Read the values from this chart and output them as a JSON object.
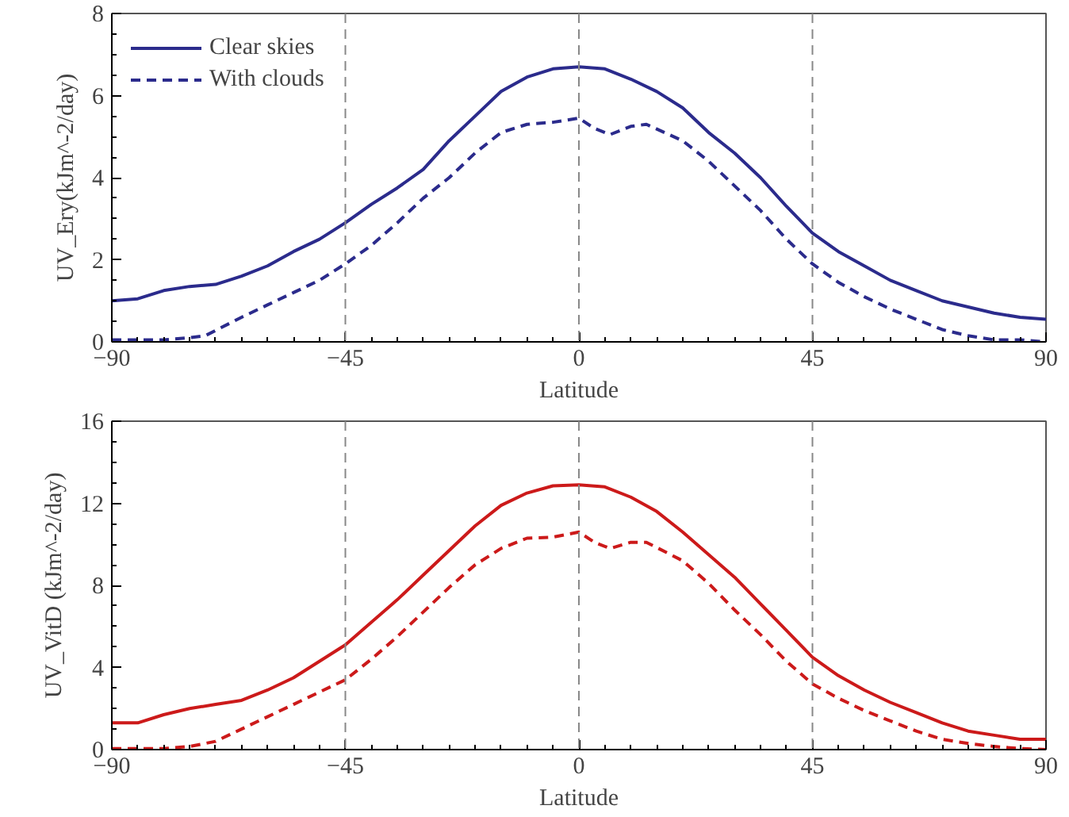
{
  "chart_data": [
    {
      "type": "line",
      "xlabel": "Latitude",
      "ylabel": "UV_Ery(kJm^-2/day)",
      "xlim": [
        -90,
        90
      ],
      "xticks": [
        -90,
        -45,
        0,
        45,
        90
      ],
      "ylim": [
        0,
        8
      ],
      "yticks": [
        0,
        2,
        4,
        6,
        8
      ],
      "grid": false,
      "legend": "top left",
      "ref_lines": [
        {
          "axis": "x",
          "value": -45,
          "line_style": "dashed",
          "color": "#888888"
        },
        {
          "axis": "x",
          "value": 0,
          "line_style": "dashed",
          "color": "#888888"
        },
        {
          "axis": "x",
          "value": 45,
          "line_style": "dashed",
          "color": "#888888"
        }
      ],
      "series": [
        {
          "name": "Clear skies",
          "color": "#2b2b8c",
          "line_style": "solid",
          "x": [
            -90,
            -85,
            -80,
            -75,
            -70,
            -65,
            -60,
            -55,
            -50,
            -45,
            -40,
            -35,
            -30,
            -25,
            -20,
            -15,
            -10,
            -5,
            0,
            5,
            10,
            15,
            20,
            25,
            30,
            35,
            40,
            45,
            50,
            55,
            60,
            65,
            70,
            75,
            80,
            85,
            90
          ],
          "values": [
            1.0,
            1.05,
            1.25,
            1.35,
            1.4,
            1.6,
            1.85,
            2.2,
            2.5,
            2.9,
            3.35,
            3.75,
            4.2,
            4.9,
            5.5,
            6.1,
            6.45,
            6.65,
            6.7,
            6.65,
            6.4,
            6.1,
            5.7,
            5.1,
            4.6,
            4.0,
            3.3,
            2.65,
            2.2,
            1.85,
            1.5,
            1.25,
            1.0,
            0.85,
            0.7,
            0.6,
            0.55
          ]
        },
        {
          "name": "With clouds",
          "color": "#2b2b8c",
          "line_style": "dashed",
          "x": [
            -90,
            -80,
            -75,
            -72,
            -65,
            -60,
            -55,
            -50,
            -45,
            -40,
            -35,
            -30,
            -25,
            -20,
            -15,
            -10,
            -5,
            0,
            3,
            6,
            10,
            13,
            20,
            25,
            30,
            35,
            40,
            45,
            50,
            55,
            60,
            65,
            70,
            75,
            80,
            85,
            90
          ],
          "values": [
            0.05,
            0.05,
            0.1,
            0.15,
            0.6,
            0.9,
            1.2,
            1.5,
            1.9,
            2.35,
            2.9,
            3.5,
            4.0,
            4.6,
            5.1,
            5.3,
            5.35,
            5.45,
            5.2,
            5.05,
            5.25,
            5.3,
            4.9,
            4.4,
            3.8,
            3.2,
            2.5,
            1.9,
            1.45,
            1.1,
            0.8,
            0.55,
            0.3,
            0.15,
            0.05,
            0.05,
            0.0
          ]
        }
      ]
    },
    {
      "type": "line",
      "xlabel": "Latitude",
      "ylabel": "UV_VitD (kJm^-2/day)",
      "xlim": [
        -90,
        90
      ],
      "xticks": [
        -90,
        -45,
        0,
        45,
        90
      ],
      "ylim": [
        0,
        16
      ],
      "yticks": [
        0,
        4,
        8,
        12,
        16
      ],
      "grid": false,
      "ref_lines": [
        {
          "axis": "x",
          "value": -45,
          "line_style": "dashed",
          "color": "#888888"
        },
        {
          "axis": "x",
          "value": 0,
          "line_style": "dashed",
          "color": "#888888"
        },
        {
          "axis": "x",
          "value": 45,
          "line_style": "dashed",
          "color": "#888888"
        }
      ],
      "series": [
        {
          "color": "#cc1a1a",
          "line_style": "solid",
          "x": [
            -90,
            -85,
            -80,
            -75,
            -70,
            -65,
            -60,
            -55,
            -50,
            -45,
            -40,
            -35,
            -30,
            -25,
            -20,
            -15,
            -10,
            -5,
            0,
            5,
            10,
            15,
            20,
            25,
            30,
            35,
            40,
            45,
            50,
            55,
            60,
            65,
            70,
            75,
            80,
            85,
            90
          ],
          "values": [
            1.3,
            1.3,
            1.7,
            2.0,
            2.2,
            2.4,
            2.9,
            3.5,
            4.3,
            5.1,
            6.2,
            7.3,
            8.5,
            9.7,
            10.9,
            11.9,
            12.5,
            12.85,
            12.9,
            12.8,
            12.3,
            11.6,
            10.6,
            9.5,
            8.4,
            7.1,
            5.8,
            4.5,
            3.6,
            2.9,
            2.3,
            1.8,
            1.3,
            0.9,
            0.7,
            0.5,
            0.5
          ]
        },
        {
          "color": "#cc1a1a",
          "line_style": "dashed",
          "x": [
            -90,
            -80,
            -75,
            -70,
            -65,
            -60,
            -55,
            -50,
            -45,
            -40,
            -35,
            -30,
            -25,
            -20,
            -15,
            -10,
            -5,
            0,
            3,
            6,
            10,
            13,
            20,
            25,
            30,
            35,
            40,
            45,
            50,
            55,
            60,
            65,
            70,
            75,
            80,
            85,
            90
          ],
          "values": [
            0.05,
            0.05,
            0.15,
            0.4,
            1.0,
            1.6,
            2.2,
            2.8,
            3.4,
            4.4,
            5.5,
            6.7,
            7.9,
            9.0,
            9.8,
            10.3,
            10.35,
            10.6,
            10.1,
            9.8,
            10.1,
            10.1,
            9.2,
            8.1,
            6.8,
            5.6,
            4.3,
            3.2,
            2.5,
            1.9,
            1.4,
            0.9,
            0.5,
            0.3,
            0.15,
            0.05,
            0.0
          ]
        }
      ]
    }
  ]
}
